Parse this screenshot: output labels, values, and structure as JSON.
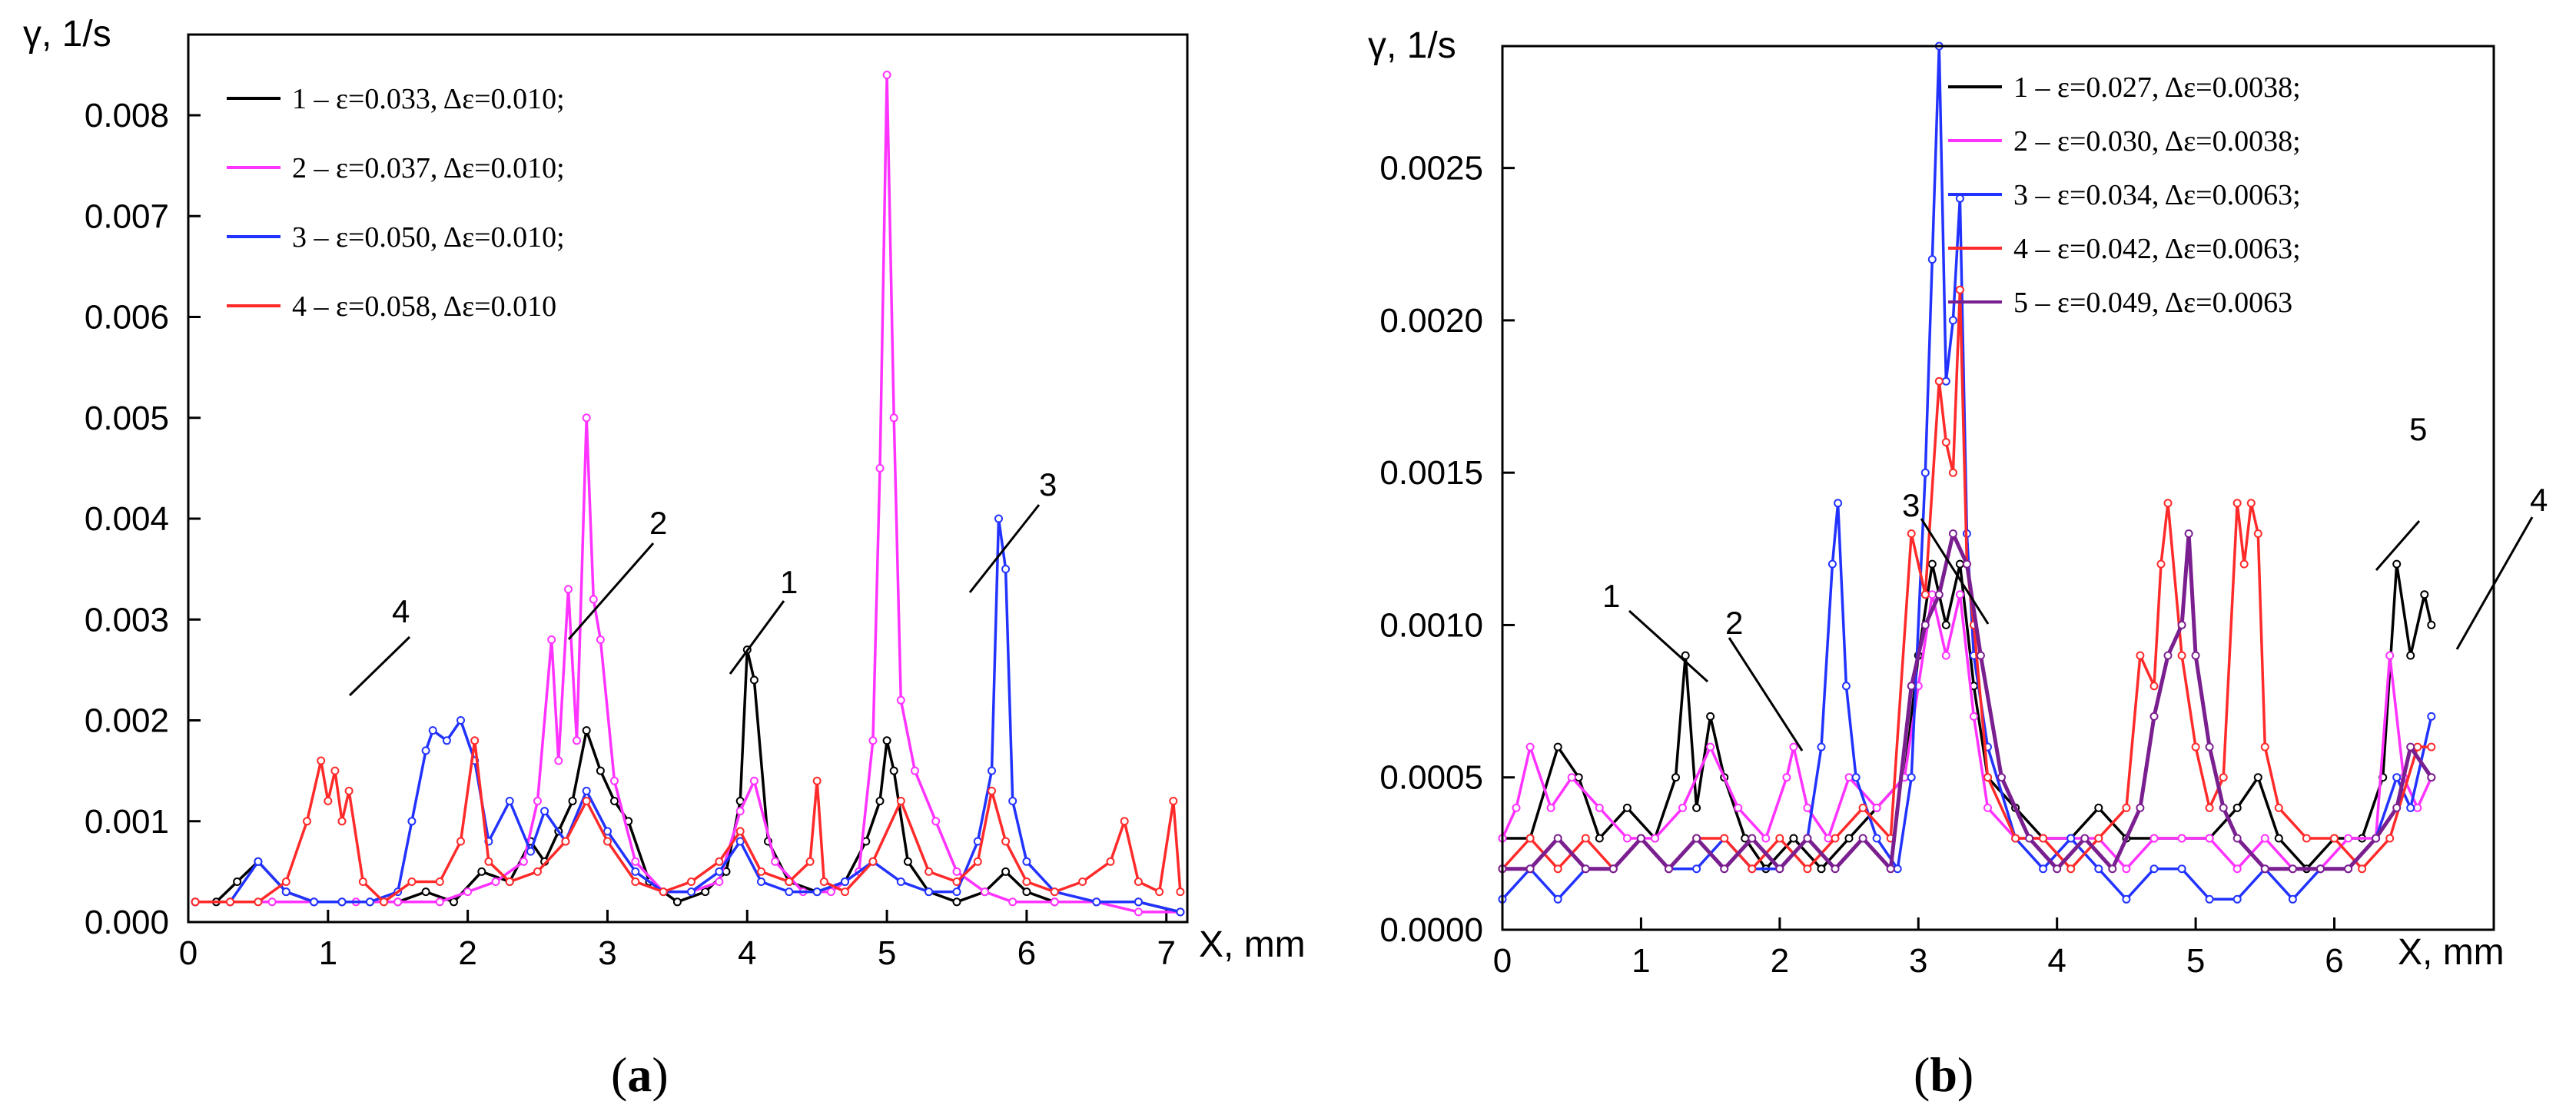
{
  "chart_data": [
    {
      "id": "a",
      "type": "line",
      "panel_label": "a",
      "ylabel": "γ, 1/s",
      "xlabel": "X, mm",
      "xlim": [
        0,
        7.15
      ],
      "ylim": [
        0,
        0.0088
      ],
      "xticks": [
        0,
        1,
        2,
        3,
        4,
        5,
        6,
        7
      ],
      "yticks": [
        0.0,
        0.001,
        0.002,
        0.003,
        0.004,
        0.005,
        0.006,
        0.007,
        0.008
      ],
      "ytick_labels": [
        "0.000",
        "0.001",
        "0.002",
        "0.003",
        "0.004",
        "0.005",
        "0.006",
        "0.007",
        "0.008"
      ],
      "series": [
        {
          "name": "1 – ε=0.033, Δε=0.010;",
          "label": "1",
          "color": "#000000",
          "x": [
            0.05,
            0.2,
            0.35,
            0.5,
            0.7,
            0.9,
            1.1,
            1.3,
            1.5,
            1.7,
            1.9,
            2.1,
            2.3,
            2.45,
            2.55,
            2.65,
            2.75,
            2.85,
            2.95,
            3.05,
            3.15,
            3.3,
            3.5,
            3.7,
            3.85,
            3.95,
            4.0,
            4.05,
            4.15,
            4.3,
            4.5,
            4.7,
            4.85,
            4.95,
            5.0,
            5.05,
            5.15,
            5.3,
            5.5,
            5.7,
            5.85,
            6.0,
            6.2,
            6.5,
            6.8,
            7.1
          ],
          "y": [
            0.0002,
            0.0002,
            0.0004,
            0.0006,
            0.0003,
            0.0002,
            0.0002,
            0.0002,
            0.0002,
            0.0003,
            0.0002,
            0.0005,
            0.0004,
            0.0008,
            0.0006,
            0.0009,
            0.0012,
            0.0019,
            0.0015,
            0.0012,
            0.001,
            0.0004,
            0.0002,
            0.0003,
            0.0005,
            0.0012,
            0.0027,
            0.0024,
            0.0008,
            0.0004,
            0.0003,
            0.0004,
            0.0008,
            0.0012,
            0.0018,
            0.0015,
            0.0006,
            0.0003,
            0.0002,
            0.0003,
            0.0005,
            0.0003,
            0.0002,
            0.0002,
            0.0002,
            0.0001
          ]
        },
        {
          "name": "2 – ε=0.037, Δε=0.010;",
          "label": "2",
          "color": "#ff33ff",
          "x": [
            0.05,
            0.3,
            0.6,
            0.9,
            1.2,
            1.5,
            1.8,
            2.0,
            2.2,
            2.4,
            2.5,
            2.6,
            2.65,
            2.72,
            2.78,
            2.85,
            2.9,
            2.95,
            3.05,
            3.2,
            3.4,
            3.6,
            3.8,
            3.95,
            4.05,
            4.2,
            4.4,
            4.6,
            4.8,
            4.9,
            4.95,
            5.0,
            5.05,
            5.1,
            5.2,
            5.35,
            5.5,
            5.7,
            5.9,
            6.2,
            6.5,
            6.8,
            7.1
          ],
          "y": [
            0.0002,
            0.0002,
            0.0002,
            0.0002,
            0.0002,
            0.0002,
            0.0002,
            0.0003,
            0.0004,
            0.0006,
            0.0012,
            0.0028,
            0.0016,
            0.0033,
            0.0018,
            0.005,
            0.0032,
            0.0028,
            0.0014,
            0.0006,
            0.0003,
            0.0003,
            0.0004,
            0.0011,
            0.0014,
            0.0006,
            0.0003,
            0.0003,
            0.0005,
            0.0018,
            0.0045,
            0.0084,
            0.005,
            0.0022,
            0.0015,
            0.001,
            0.0005,
            0.0003,
            0.0002,
            0.0002,
            0.0002,
            0.0001,
            0.0001
          ]
        },
        {
          "name": "3 – ε=0.050, Δε=0.010;",
          "label": "3",
          "color": "#2233ff",
          "x": [
            0.05,
            0.3,
            0.5,
            0.7,
            0.9,
            1.1,
            1.3,
            1.5,
            1.6,
            1.7,
            1.75,
            1.85,
            1.95,
            2.05,
            2.15,
            2.3,
            2.45,
            2.55,
            2.7,
            2.85,
            3.0,
            3.2,
            3.4,
            3.6,
            3.8,
            3.95,
            4.1,
            4.3,
            4.5,
            4.7,
            4.9,
            5.1,
            5.3,
            5.5,
            5.65,
            5.75,
            5.8,
            5.85,
            5.9,
            6.0,
            6.2,
            6.5,
            6.8,
            7.1
          ],
          "y": [
            0.0002,
            0.0002,
            0.0006,
            0.0003,
            0.0002,
            0.0002,
            0.0002,
            0.0003,
            0.001,
            0.0017,
            0.0019,
            0.0018,
            0.002,
            0.0016,
            0.0008,
            0.0012,
            0.0007,
            0.0011,
            0.0008,
            0.0013,
            0.0009,
            0.0005,
            0.0003,
            0.0003,
            0.0005,
            0.0008,
            0.0004,
            0.0003,
            0.0003,
            0.0004,
            0.0006,
            0.0004,
            0.0003,
            0.0003,
            0.0008,
            0.0015,
            0.004,
            0.0035,
            0.0012,
            0.0006,
            0.0003,
            0.0002,
            0.0002,
            0.0001
          ]
        },
        {
          "name": "4 – ε=0.058, Δε=0.010",
          "label": "4",
          "color": "#ff2a2a",
          "x": [
            0.05,
            0.3,
            0.5,
            0.7,
            0.85,
            0.95,
            1.0,
            1.05,
            1.1,
            1.15,
            1.25,
            1.4,
            1.6,
            1.8,
            1.95,
            2.05,
            2.15,
            2.3,
            2.5,
            2.7,
            2.85,
            3.0,
            3.2,
            3.4,
            3.6,
            3.8,
            3.95,
            4.1,
            4.3,
            4.45,
            4.5,
            4.55,
            4.7,
            4.9,
            5.1,
            5.3,
            5.5,
            5.65,
            5.75,
            5.85,
            6.0,
            6.2,
            6.4,
            6.6,
            6.7,
            6.8,
            6.95,
            7.05,
            7.1
          ],
          "y": [
            0.0002,
            0.0002,
            0.0002,
            0.0004,
            0.001,
            0.0016,
            0.0012,
            0.0015,
            0.001,
            0.0013,
            0.0004,
            0.0002,
            0.0004,
            0.0004,
            0.0008,
            0.0018,
            0.0006,
            0.0004,
            0.0005,
            0.0008,
            0.0012,
            0.0008,
            0.0004,
            0.0003,
            0.0004,
            0.0006,
            0.0009,
            0.0005,
            0.0004,
            0.0006,
            0.0014,
            0.0004,
            0.0003,
            0.0006,
            0.0012,
            0.0005,
            0.0004,
            0.0006,
            0.0013,
            0.0008,
            0.0004,
            0.0003,
            0.0004,
            0.0006,
            0.001,
            0.0004,
            0.0003,
            0.0012,
            0.0003
          ]
        }
      ],
      "annotations": [
        "1",
        "2",
        "3",
        "4"
      ]
    },
    {
      "id": "b",
      "type": "line",
      "panel_label": "b",
      "ylabel": "γ, 1/s",
      "xlabel": "X, mm",
      "xlim": [
        0,
        7.15
      ],
      "ylim": [
        0,
        0.0029
      ],
      "xticks": [
        0,
        1,
        2,
        3,
        4,
        5,
        6
      ],
      "yticks": [
        0.0,
        0.0005,
        0.001,
        0.0015,
        0.002,
        0.0025
      ],
      "ytick_labels": [
        "0.0000",
        "0.0005",
        "0.0010",
        "0.0015",
        "0.0020",
        "0.0025"
      ],
      "series": [
        {
          "name": "1 – ε=0.027, Δε=0.0038;",
          "label": "1",
          "color": "#000000",
          "x": [
            0.0,
            0.2,
            0.4,
            0.55,
            0.7,
            0.9,
            1.1,
            1.25,
            1.32,
            1.4,
            1.5,
            1.6,
            1.75,
            1.9,
            2.1,
            2.3,
            2.5,
            2.7,
            2.9,
            3.0,
            3.1,
            3.2,
            3.3,
            3.4,
            3.5,
            3.7,
            3.9,
            4.1,
            4.3,
            4.5,
            4.7,
            4.9,
            5.1,
            5.3,
            5.45,
            5.6,
            5.8,
            6.0,
            6.2,
            6.35,
            6.45,
            6.55,
            6.65,
            6.7
          ],
          "y": [
            0.0003,
            0.0003,
            0.0006,
            0.0005,
            0.0003,
            0.0004,
            0.0003,
            0.0005,
            0.0009,
            0.0004,
            0.0007,
            0.0005,
            0.0003,
            0.0002,
            0.0003,
            0.0002,
            0.0003,
            0.0004,
            0.0005,
            0.0009,
            0.0012,
            0.001,
            0.0012,
            0.0008,
            0.0005,
            0.0004,
            0.0003,
            0.0003,
            0.0004,
            0.0003,
            0.0003,
            0.0003,
            0.0003,
            0.0004,
            0.0005,
            0.0003,
            0.0002,
            0.0003,
            0.0003,
            0.0005,
            0.0012,
            0.0009,
            0.0011,
            0.001
          ]
        },
        {
          "name": "2 – ε=0.030, Δε=0.0038;",
          "label": "2",
          "color": "#ff33ff",
          "x": [
            0.0,
            0.1,
            0.2,
            0.35,
            0.5,
            0.7,
            0.9,
            1.1,
            1.3,
            1.5,
            1.7,
            1.9,
            2.05,
            2.1,
            2.2,
            2.35,
            2.5,
            2.7,
            2.9,
            3.0,
            3.1,
            3.2,
            3.3,
            3.4,
            3.5,
            3.7,
            3.9,
            4.1,
            4.3,
            4.5,
            4.7,
            4.9,
            5.1,
            5.3,
            5.5,
            5.7,
            5.9,
            6.1,
            6.3,
            6.4,
            6.5,
            6.6,
            6.7
          ],
          "y": [
            0.0003,
            0.0004,
            0.0006,
            0.0004,
            0.0005,
            0.0004,
            0.0003,
            0.0003,
            0.0004,
            0.0006,
            0.0004,
            0.0003,
            0.0005,
            0.0006,
            0.0004,
            0.0003,
            0.0005,
            0.0004,
            0.0005,
            0.0008,
            0.0011,
            0.0009,
            0.0011,
            0.0007,
            0.0004,
            0.0003,
            0.0003,
            0.0003,
            0.0003,
            0.0002,
            0.0003,
            0.0003,
            0.0003,
            0.0002,
            0.0003,
            0.0002,
            0.0002,
            0.0003,
            0.0003,
            0.0009,
            0.0005,
            0.0004,
            0.0005
          ]
        },
        {
          "name": "3 – ε=0.034, Δε=0.0063;",
          "label": "3",
          "color": "#2233ff",
          "x": [
            0.0,
            0.2,
            0.4,
            0.6,
            0.8,
            1.0,
            1.2,
            1.4,
            1.6,
            1.8,
            2.0,
            2.2,
            2.3,
            2.38,
            2.42,
            2.48,
            2.55,
            2.7,
            2.85,
            2.95,
            3.05,
            3.1,
            3.15,
            3.2,
            3.25,
            3.3,
            3.35,
            3.4,
            3.5,
            3.7,
            3.9,
            4.1,
            4.3,
            4.5,
            4.7,
            4.9,
            5.1,
            5.3,
            5.5,
            5.7,
            5.9,
            6.1,
            6.3,
            6.45,
            6.55,
            6.7
          ],
          "y": [
            0.0001,
            0.0002,
            0.0001,
            0.0002,
            0.0002,
            0.0003,
            0.0002,
            0.0002,
            0.0003,
            0.0002,
            0.0002,
            0.0003,
            0.0006,
            0.0012,
            0.0014,
            0.0008,
            0.0005,
            0.0003,
            0.0002,
            0.0005,
            0.0015,
            0.0022,
            0.0029,
            0.0018,
            0.002,
            0.0024,
            0.0013,
            0.0009,
            0.0006,
            0.0003,
            0.0002,
            0.0003,
            0.0002,
            0.0001,
            0.0002,
            0.0002,
            0.0001,
            0.0001,
            0.0002,
            0.0001,
            0.0002,
            0.0002,
            0.0003,
            0.0005,
            0.0004,
            0.0007
          ]
        },
        {
          "name": "4 – ε=0.042, Δε=0.0063;",
          "label": "4",
          "color": "#ff2a2a",
          "x": [
            0.0,
            0.2,
            0.4,
            0.6,
            0.8,
            1.0,
            1.2,
            1.4,
            1.6,
            1.8,
            2.0,
            2.2,
            2.4,
            2.6,
            2.8,
            2.95,
            3.05,
            3.15,
            3.2,
            3.25,
            3.3,
            3.35,
            3.4,
            3.5,
            3.7,
            3.9,
            4.1,
            4.3,
            4.5,
            4.6,
            4.7,
            4.75,
            4.8,
            4.9,
            5.0,
            5.1,
            5.2,
            5.3,
            5.35,
            5.4,
            5.45,
            5.5,
            5.6,
            5.8,
            6.0,
            6.2,
            6.4,
            6.6,
            6.7
          ],
          "y": [
            0.0002,
            0.0003,
            0.0002,
            0.0003,
            0.0002,
            0.0003,
            0.0002,
            0.0003,
            0.0003,
            0.0002,
            0.0003,
            0.0002,
            0.0003,
            0.0004,
            0.0003,
            0.0013,
            0.0011,
            0.0018,
            0.0016,
            0.0015,
            0.0021,
            0.0012,
            0.001,
            0.0005,
            0.0003,
            0.0003,
            0.0002,
            0.0003,
            0.0004,
            0.0009,
            0.0008,
            0.0012,
            0.0014,
            0.0009,
            0.0006,
            0.0004,
            0.0005,
            0.0014,
            0.0012,
            0.0014,
            0.0013,
            0.0006,
            0.0004,
            0.0003,
            0.0003,
            0.0002,
            0.0003,
            0.0006,
            0.0006
          ]
        },
        {
          "name": "5 – ε=0.049, Δε=0.0063",
          "label": "5",
          "color": "#7a1f8f",
          "x": [
            0.0,
            0.2,
            0.4,
            0.6,
            0.8,
            1.0,
            1.2,
            1.4,
            1.6,
            1.8,
            2.0,
            2.2,
            2.4,
            2.6,
            2.8,
            2.95,
            3.05,
            3.15,
            3.25,
            3.35,
            3.45,
            3.6,
            3.8,
            4.0,
            4.2,
            4.4,
            4.6,
            4.7,
            4.8,
            4.9,
            4.95,
            5.0,
            5.1,
            5.2,
            5.3,
            5.5,
            5.7,
            5.9,
            6.1,
            6.3,
            6.45,
            6.55,
            6.7
          ],
          "y": [
            0.0002,
            0.0002,
            0.0003,
            0.0002,
            0.0002,
            0.0003,
            0.0002,
            0.0003,
            0.0002,
            0.0003,
            0.0002,
            0.0003,
            0.0002,
            0.0003,
            0.0002,
            0.0008,
            0.001,
            0.0011,
            0.0013,
            0.0012,
            0.0009,
            0.0005,
            0.0003,
            0.0002,
            0.0003,
            0.0002,
            0.0004,
            0.0007,
            0.0009,
            0.001,
            0.0013,
            0.0009,
            0.0006,
            0.0004,
            0.0003,
            0.0002,
            0.0002,
            0.0002,
            0.0002,
            0.0003,
            0.0004,
            0.0006,
            0.0005
          ]
        }
      ],
      "annotations": [
        "1",
        "2",
        "3",
        "4",
        "5"
      ]
    }
  ]
}
